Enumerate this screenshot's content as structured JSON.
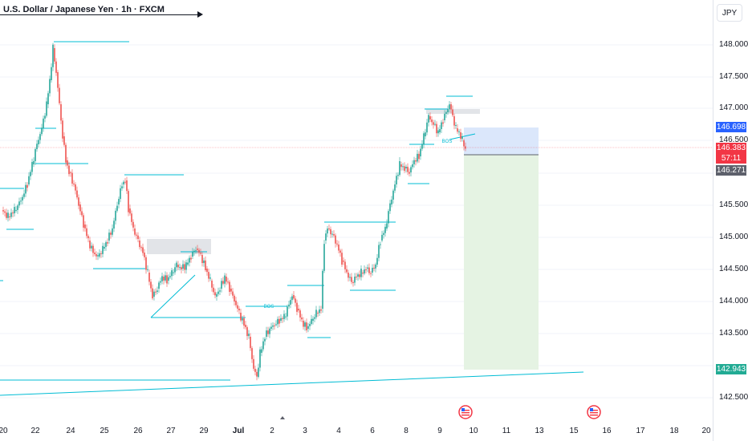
{
  "header": {
    "title": "U.S. Dollar / Japanese Yen · 1h · FXCM"
  },
  "price_axis": {
    "currency": "JPY",
    "ticks": [
      "148.000",
      "147.500",
      "147.000",
      "146.500",
      "145.500",
      "145.000",
      "144.500",
      "144.000",
      "143.500",
      "142.500"
    ]
  },
  "time_axis": {
    "labels": [
      "20",
      "22",
      "24",
      "25",
      "26",
      "27",
      "29",
      "Jul",
      "2",
      "3",
      "4",
      "6",
      "8",
      "9",
      "10",
      "11",
      "13",
      "15",
      "16",
      "17",
      "18",
      "20"
    ]
  },
  "tags": {
    "target_high": "146.698",
    "last_price": "146.383",
    "countdown": "57:11",
    "entry": "146.271",
    "target_low": "142.943"
  },
  "annotations": {
    "bos_label_1": "BOS",
    "bos_label_2": "BOS"
  },
  "colors": {
    "up": "#26a69a",
    "down": "#ef5350",
    "level": "#00bcd4",
    "risk_zone": "#dbe7fb",
    "reward_zone": "#e5f3e3",
    "tag_blue": "#2962ff",
    "tag_red": "#f23645",
    "tag_gray": "#5d606b",
    "tag_green": "#22ab94"
  },
  "icons": [
    "us-flag-event-icon",
    "us-flag-event-icon"
  ]
}
